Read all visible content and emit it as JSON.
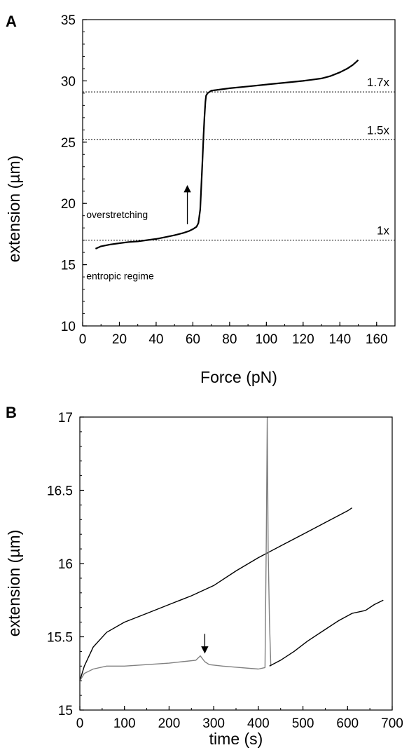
{
  "chart_data": [
    {
      "type": "line",
      "panel_label": "A",
      "xlabel": "Force (pN)",
      "ylabel": "extension (µm)",
      "xlim": [
        0,
        170
      ],
      "ylim": [
        10,
        35
      ],
      "xticks": [
        0,
        20,
        40,
        60,
        80,
        100,
        120,
        140,
        160
      ],
      "yticks": [
        10,
        15,
        20,
        25,
        30,
        35
      ],
      "grid": false,
      "series": [
        {
          "color": "#000000",
          "x": [
            7,
            10,
            15,
            20,
            25,
            30,
            35,
            40,
            45,
            50,
            55,
            58,
            60,
            62,
            63,
            64,
            64.6,
            65.2,
            65.8,
            66.3,
            66.8,
            67.2,
            68,
            70,
            75,
            80,
            90,
            100,
            110,
            120,
            125,
            130,
            135,
            140,
            144,
            147,
            150
          ],
          "y": [
            16.3,
            16.5,
            16.65,
            16.75,
            16.85,
            16.9,
            17.0,
            17.1,
            17.25,
            17.4,
            17.6,
            17.75,
            17.9,
            18.1,
            18.4,
            19.5,
            21.5,
            23.5,
            25.5,
            27.0,
            28.3,
            28.8,
            29.0,
            29.2,
            29.3,
            29.4,
            29.55,
            29.7,
            29.85,
            30.0,
            30.1,
            30.2,
            30.4,
            30.7,
            31.0,
            31.3,
            31.7
          ]
        }
      ],
      "reference_lines": [
        {
          "y": 17.0,
          "label": "1x"
        },
        {
          "y": 25.2,
          "label": "1.5x"
        },
        {
          "y": 29.1,
          "label": "1.7x"
        }
      ],
      "annotations": [
        {
          "text": "overstretching",
          "x": 2,
          "y": 18.8
        },
        {
          "text": "entropic regime",
          "x": 2,
          "y": 13.8
        }
      ],
      "arrow": {
        "x": 57,
        "y_from": 18.3,
        "y_to": 21.2
      }
    },
    {
      "type": "line",
      "panel_label": "B",
      "xlabel": "time (s)",
      "ylabel": "extension (µm)",
      "xlim": [
        0,
        700
      ],
      "ylim": [
        15,
        17
      ],
      "xticks": [
        0,
        100,
        200,
        300,
        400,
        500,
        600,
        700
      ],
      "yticks": [
        15,
        15.5,
        16,
        16.5,
        17
      ],
      "ytick_labels": [
        "15",
        "15.5",
        "16",
        "16.5",
        "17"
      ],
      "grid": false,
      "series": [
        {
          "color": "#000000",
          "x": [
            0,
            10,
            30,
            60,
            100,
            150,
            200,
            250,
            300,
            350,
            400,
            450,
            500,
            550,
            600,
            610
          ],
          "y": [
            15.2,
            15.3,
            15.43,
            15.53,
            15.6,
            15.66,
            15.72,
            15.78,
            15.85,
            15.95,
            16.04,
            16.12,
            16.2,
            16.28,
            16.36,
            16.38
          ]
        },
        {
          "color": "#808080",
          "x": [
            0,
            10,
            30,
            60,
            100,
            150,
            200,
            230,
            260,
            270,
            275,
            280,
            290,
            320,
            360,
            400,
            415,
            418,
            420,
            422,
            425,
            428
          ],
          "y": [
            15.2,
            15.25,
            15.28,
            15.3,
            15.3,
            15.31,
            15.32,
            15.33,
            15.34,
            15.37,
            15.35,
            15.33,
            15.31,
            15.3,
            15.29,
            15.28,
            15.29,
            16.2,
            17.0,
            16.1,
            15.6,
            15.3
          ]
        },
        {
          "color": "#000000",
          "x": [
            425,
            450,
            480,
            510,
            550,
            580,
            610,
            640,
            660,
            680
          ],
          "y": [
            15.3,
            15.34,
            15.4,
            15.47,
            15.55,
            15.61,
            15.66,
            15.68,
            15.72,
            15.75
          ]
        }
      ],
      "arrow": {
        "x": 280,
        "y_from": 15.52,
        "y_to": 15.41
      }
    }
  ]
}
